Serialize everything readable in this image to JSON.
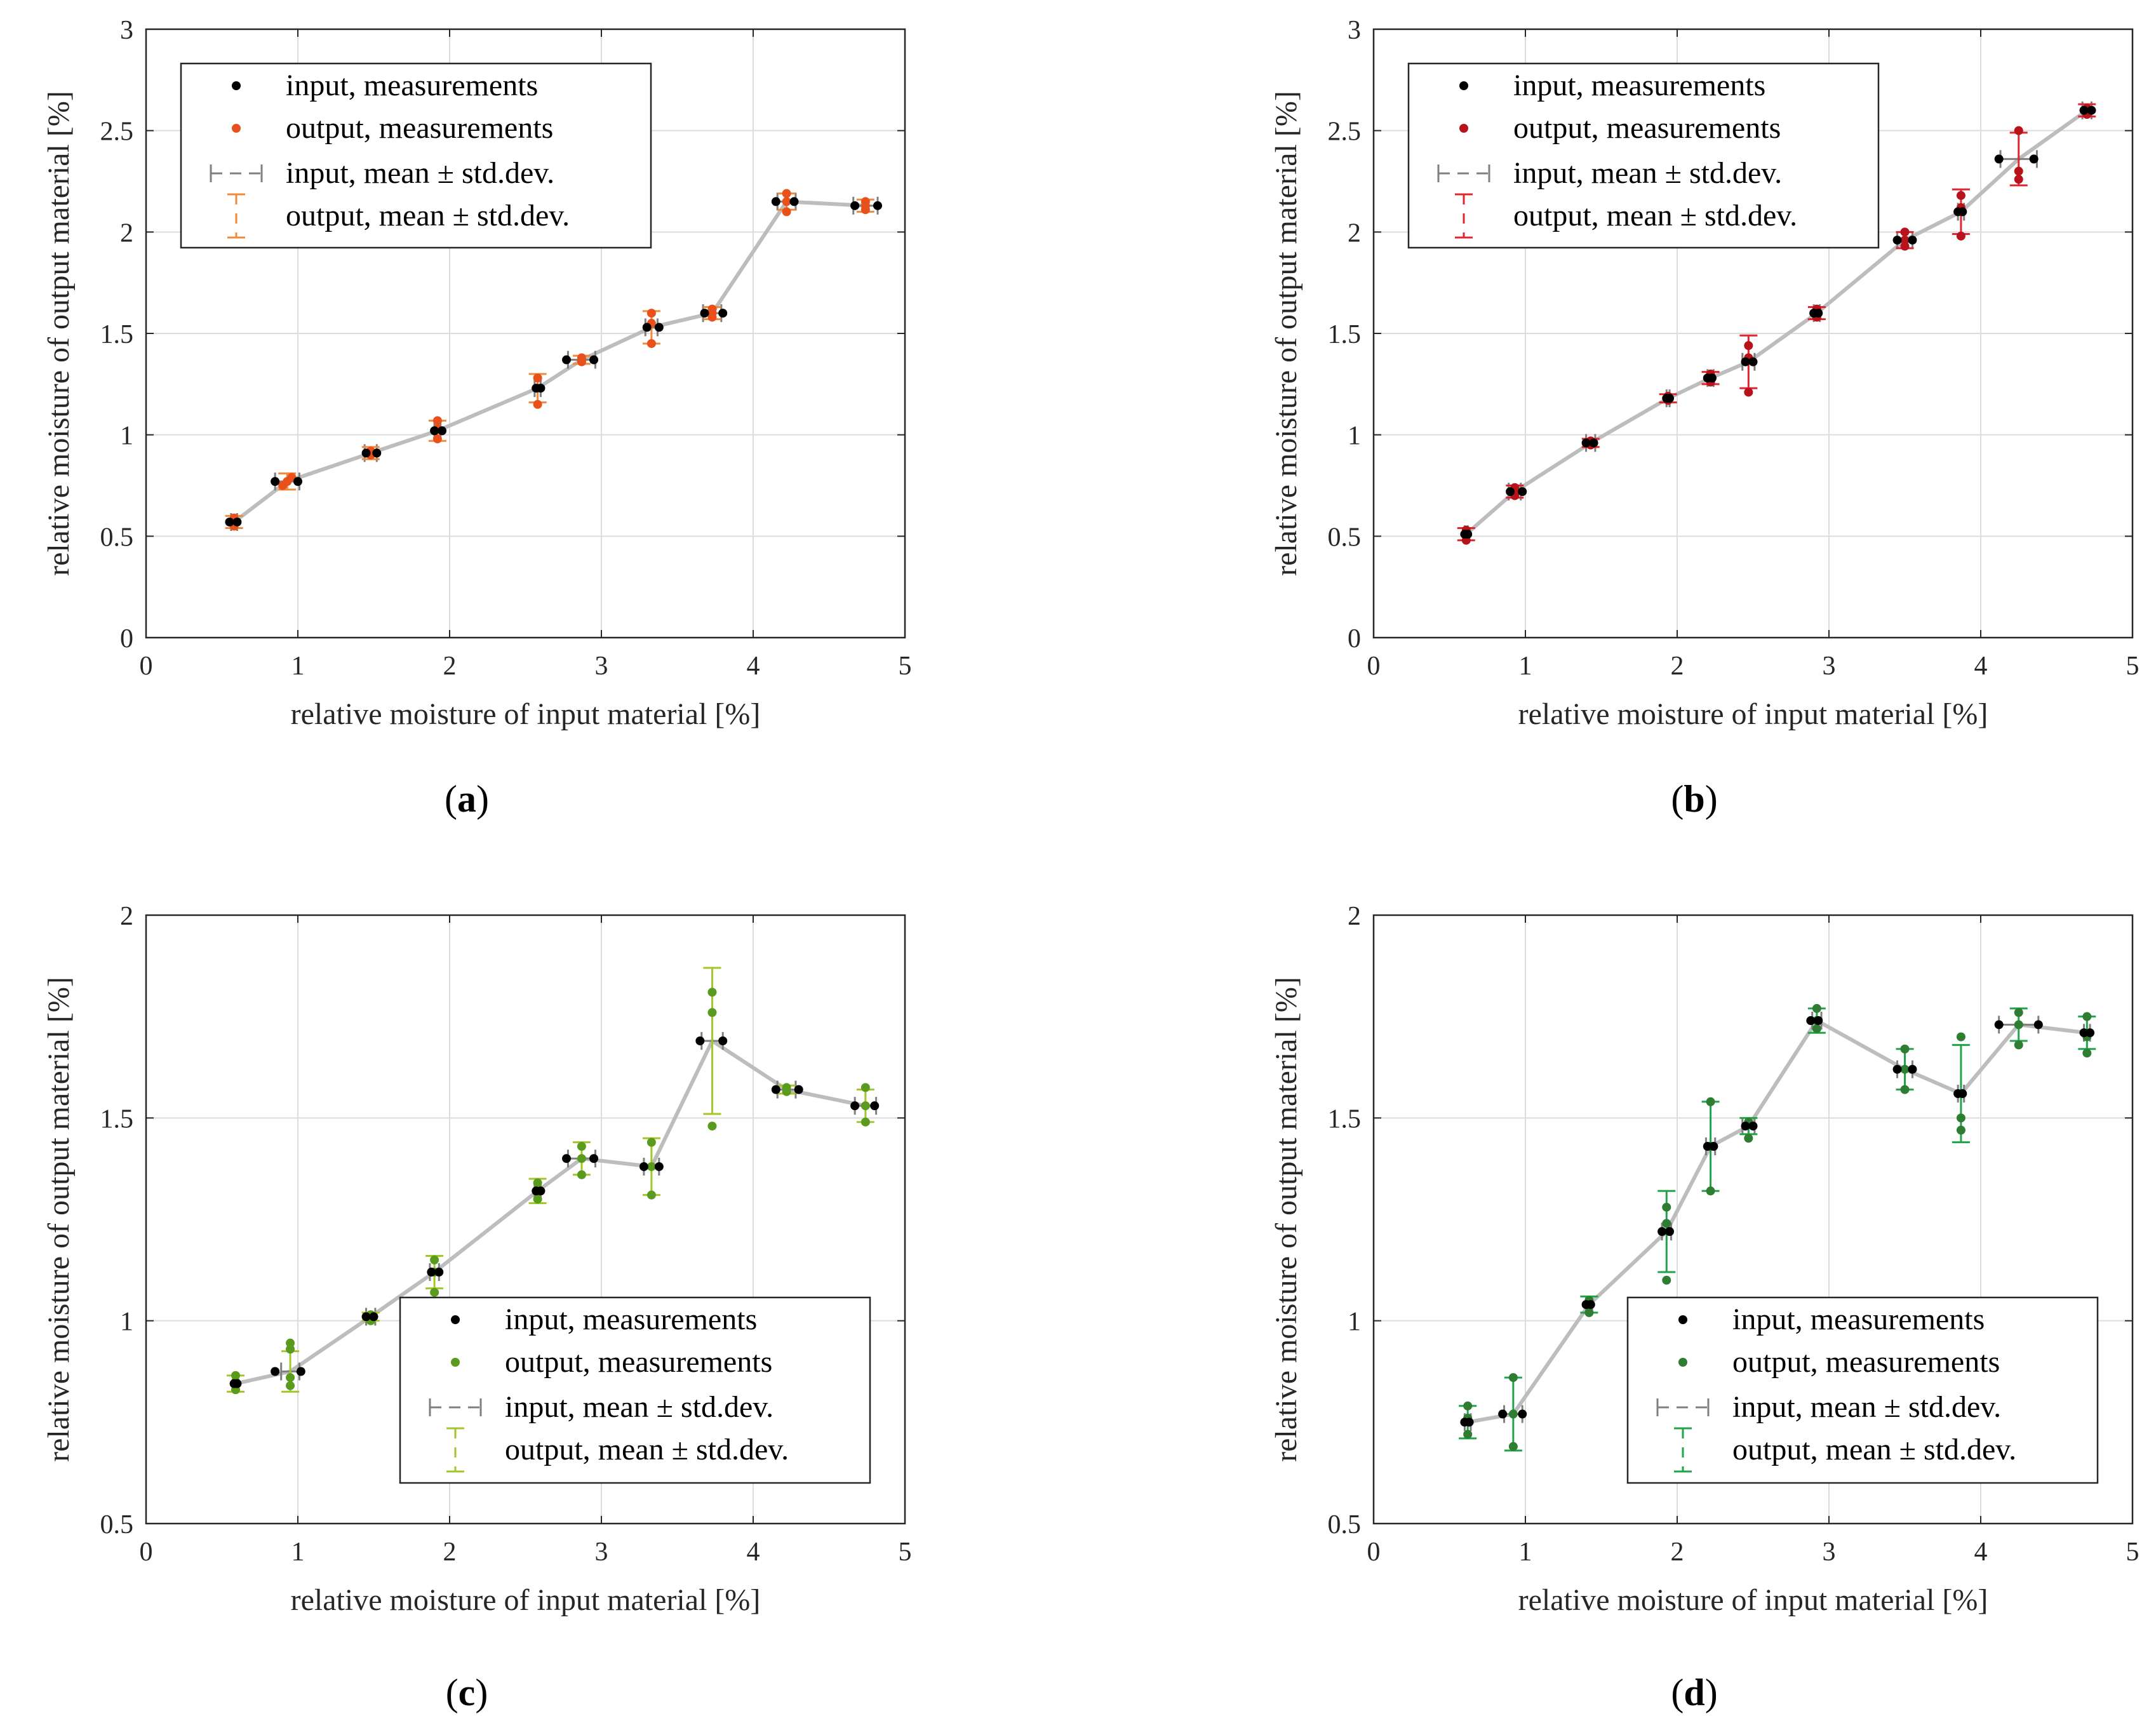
{
  "colors": {
    "axis": "#262626",
    "grid": "#dcdcdc",
    "line": "#bdbdbd",
    "input_errorbar": "#808080",
    "input_points": "#000000"
  },
  "legend_text": {
    "input_measurements": "input, measurements",
    "output_measurements": "output, measurements",
    "input_mean": "input, mean ± std.dev.",
    "output_mean": "output, mean ± std.dev."
  },
  "chart_data": [
    {
      "panel": "a",
      "panel_label": "(a)",
      "type": "scatter",
      "xlabel": "relative moisture of input material [%]",
      "ylabel": "relative moisture of output material [%]",
      "xlim": [
        0,
        5
      ],
      "ylim": [
        0,
        3
      ],
      "xticks": [
        "0",
        "1",
        "2",
        "3",
        "4",
        "5"
      ],
      "yticks": [
        "0",
        "0.5",
        "1",
        "1.5",
        "2",
        "2.5",
        "3"
      ],
      "grid": true,
      "legend_position": "top-left",
      "output_color": "#e8501c",
      "output_errorbar_color": "#f08a3c",
      "series": [
        {
          "name": "input, measurements",
          "x": [
            0.55,
            0.6,
            0.85,
            1.0,
            1.45,
            1.52,
            1.9,
            1.95,
            2.57,
            2.6,
            2.77,
            2.95,
            3.3,
            3.38,
            3.68,
            3.8,
            4.15,
            4.27,
            4.67,
            4.82
          ],
          "y": [
            0.57,
            0.57,
            0.77,
            0.77,
            0.91,
            0.91,
            1.02,
            1.02,
            1.23,
            1.23,
            1.37,
            1.37,
            1.53,
            1.53,
            1.6,
            1.6,
            2.15,
            2.15,
            2.13,
            2.13
          ]
        },
        {
          "name": "output, measurements",
          "x": [
            0.58,
            0.58,
            0.58,
            0.9,
            0.93,
            0.96,
            1.48,
            1.48,
            1.92,
            1.92,
            1.92,
            2.58,
            2.58,
            2.58,
            2.87,
            2.87,
            2.87,
            3.33,
            3.33,
            3.33,
            3.73,
            3.73,
            3.73,
            4.22,
            4.22,
            4.22,
            4.74,
            4.74,
            4.74
          ],
          "y": [
            0.55,
            0.57,
            0.59,
            0.75,
            0.77,
            0.79,
            0.9,
            0.92,
            0.98,
            1.03,
            1.07,
            1.15,
            1.23,
            1.28,
            1.36,
            1.37,
            1.38,
            1.45,
            1.55,
            1.6,
            1.58,
            1.6,
            1.62,
            2.1,
            2.15,
            2.19,
            2.11,
            2.13,
            2.15
          ]
        },
        {
          "name": "mean",
          "x": [
            0.58,
            0.93,
            1.48,
            1.92,
            2.58,
            2.87,
            3.33,
            3.73,
            4.22,
            4.74
          ],
          "y": [
            0.57,
            0.77,
            0.91,
            1.02,
            1.23,
            1.37,
            1.53,
            1.6,
            2.15,
            2.13
          ],
          "xerr": [
            0.02,
            0.08,
            0.04,
            0.02,
            0.02,
            0.09,
            0.04,
            0.06,
            0.06,
            0.08
          ],
          "yerr": [
            0.03,
            0.04,
            0.03,
            0.05,
            0.07,
            0.02,
            0.08,
            0.03,
            0.04,
            0.03
          ]
        }
      ]
    },
    {
      "panel": "b",
      "panel_label": "(b)",
      "type": "scatter",
      "xlabel": "relative moisture of input material [%]",
      "ylabel": "relative moisture of output material [%]",
      "xlim": [
        0,
        5
      ],
      "ylim": [
        0,
        3
      ],
      "xticks": [
        "0",
        "1",
        "2",
        "3",
        "4",
        "5"
      ],
      "yticks": [
        "0",
        "0.5",
        "1",
        "1.5",
        "2",
        "2.5",
        "3"
      ],
      "grid": true,
      "legend_position": "top-left",
      "output_color": "#b8121b",
      "output_errorbar_color": "#e0262e",
      "series": [
        {
          "name": "input, measurements",
          "x": [
            0.6,
            0.62,
            0.9,
            0.98,
            1.4,
            1.45,
            1.93,
            1.95,
            2.2,
            2.23,
            2.45,
            2.5,
            2.9,
            2.93,
            3.45,
            3.55,
            3.85,
            3.88,
            4.12,
            4.35,
            4.68,
            4.73
          ],
          "y": [
            0.51,
            0.51,
            0.72,
            0.72,
            0.96,
            0.96,
            1.18,
            1.18,
            1.28,
            1.28,
            1.36,
            1.36,
            1.6,
            1.6,
            1.96,
            1.96,
            2.1,
            2.1,
            2.36,
            2.36,
            2.6,
            2.6
          ]
        },
        {
          "name": "output, measurements",
          "x": [
            0.61,
            0.61,
            0.61,
            0.93,
            0.93,
            0.93,
            1.43,
            1.43,
            1.94,
            1.94,
            2.22,
            2.22,
            2.22,
            2.47,
            2.47,
            2.47,
            2.92,
            2.92,
            2.92,
            3.5,
            3.5,
            3.5,
            3.87,
            3.87,
            3.87,
            4.25,
            4.25,
            4.25,
            4.7,
            4.7
          ],
          "y": [
            0.48,
            0.51,
            0.53,
            0.7,
            0.72,
            0.74,
            0.95,
            0.97,
            1.17,
            1.19,
            1.26,
            1.28,
            1.3,
            1.21,
            1.38,
            1.44,
            1.58,
            1.6,
            1.62,
            1.93,
            1.96,
            2.0,
            1.98,
            2.12,
            2.18,
            2.26,
            2.3,
            2.5,
            2.58,
            2.61
          ]
        },
        {
          "name": "mean",
          "x": [
            0.61,
            0.93,
            1.43,
            1.94,
            2.22,
            2.47,
            2.92,
            3.5,
            3.87,
            4.25,
            4.7
          ],
          "y": [
            0.51,
            0.72,
            0.96,
            1.18,
            1.28,
            1.36,
            1.6,
            1.96,
            2.1,
            2.36,
            2.6
          ],
          "xerr": [
            0.01,
            0.04,
            0.03,
            0.01,
            0.02,
            0.04,
            0.02,
            0.05,
            0.02,
            0.12,
            0.03
          ],
          "yerr": [
            0.03,
            0.03,
            0.02,
            0.02,
            0.03,
            0.13,
            0.03,
            0.04,
            0.11,
            0.13,
            0.03
          ]
        }
      ]
    },
    {
      "panel": "c",
      "panel_label": "(c)",
      "type": "scatter",
      "xlabel": "relative moisture of input material [%]",
      "ylabel": "relative moisture of output material [%]",
      "xlim": [
        0,
        5
      ],
      "ylim": [
        0.5,
        2
      ],
      "xticks": [
        "0",
        "1",
        "2",
        "3",
        "4",
        "5"
      ],
      "yticks": [
        "0.5",
        "1",
        "1.5",
        "2"
      ],
      "grid": true,
      "legend_position": "bottom-right",
      "output_color": "#5a9b1e",
      "output_errorbar_color": "#a3c62a",
      "series": [
        {
          "name": "input, measurements",
          "x": [
            0.58,
            0.6,
            0.85,
            1.02,
            1.45,
            1.5,
            1.88,
            1.93,
            2.57,
            2.6,
            2.77,
            2.95,
            3.28,
            3.38,
            3.65,
            3.8,
            4.15,
            4.3,
            4.67,
            4.8
          ],
          "y": [
            0.845,
            0.845,
            0.875,
            0.875,
            1.01,
            1.01,
            1.12,
            1.12,
            1.32,
            1.32,
            1.4,
            1.4,
            1.38,
            1.38,
            1.69,
            1.69,
            1.57,
            1.57,
            1.53,
            1.53
          ]
        },
        {
          "name": "output, measurements",
          "x": [
            0.59,
            0.59,
            0.59,
            0.95,
            0.95,
            0.95,
            0.95,
            1.48,
            1.48,
            1.9,
            1.9,
            1.9,
            2.58,
            2.58,
            2.58,
            2.87,
            2.87,
            2.87,
            3.33,
            3.33,
            3.33,
            3.73,
            3.73,
            3.73,
            4.22,
            4.22,
            4.74,
            4.74,
            4.74
          ],
          "y": [
            0.83,
            0.85,
            0.865,
            0.84,
            0.86,
            0.93,
            0.945,
            1.0,
            1.015,
            1.07,
            1.12,
            1.15,
            1.3,
            1.32,
            1.34,
            1.36,
            1.4,
            1.43,
            1.31,
            1.38,
            1.44,
            1.48,
            1.76,
            1.81,
            1.565,
            1.575,
            1.49,
            1.53,
            1.575
          ]
        },
        {
          "name": "mean",
          "x": [
            0.59,
            0.95,
            1.48,
            1.9,
            2.58,
            2.87,
            3.33,
            3.73,
            4.22,
            4.74
          ],
          "y": [
            0.845,
            0.875,
            1.01,
            1.12,
            1.32,
            1.4,
            1.38,
            1.69,
            1.57,
            1.53
          ],
          "xerr": [
            0.01,
            0.06,
            0.03,
            0.03,
            0.02,
            0.09,
            0.05,
            0.07,
            0.06,
            0.07
          ],
          "yerr": [
            0.02,
            0.05,
            0.01,
            0.04,
            0.03,
            0.04,
            0.07,
            0.18,
            0.01,
            0.04
          ]
        }
      ]
    },
    {
      "panel": "d",
      "panel_label": "(d)",
      "type": "scatter",
      "xlabel": "relative moisture of input material [%]",
      "ylabel": "relative moisture of output material [%]",
      "xlim": [
        0,
        5
      ],
      "ylim": [
        0.5,
        2
      ],
      "xticks": [
        "0",
        "1",
        "2",
        "3",
        "4",
        "5"
      ],
      "yticks": [
        "0.5",
        "1",
        "1.5",
        "2"
      ],
      "grid": true,
      "legend_position": "bottom-right",
      "output_color": "#2e7d32",
      "output_errorbar_color": "#21a34a",
      "series": [
        {
          "name": "input, measurements",
          "x": [
            0.6,
            0.63,
            0.85,
            0.98,
            1.4,
            1.43,
            1.9,
            1.95,
            2.2,
            2.24,
            2.45,
            2.5,
            2.88,
            2.93,
            3.45,
            3.55,
            3.85,
            3.88,
            4.12,
            4.38,
            4.68,
            4.72
          ],
          "y": [
            0.75,
            0.75,
            0.77,
            0.77,
            1.04,
            1.04,
            1.22,
            1.22,
            1.43,
            1.43,
            1.48,
            1.48,
            1.74,
            1.74,
            1.62,
            1.62,
            1.56,
            1.56,
            1.73,
            1.73,
            1.71,
            1.71
          ]
        },
        {
          "name": "output, measurements",
          "x": [
            0.62,
            0.62,
            0.62,
            0.92,
            0.92,
            0.92,
            1.42,
            1.42,
            1.93,
            1.93,
            1.93,
            2.22,
            2.22,
            2.22,
            2.47,
            2.47,
            2.92,
            2.92,
            2.92,
            3.5,
            3.5,
            3.5,
            3.87,
            3.87,
            3.87,
            4.25,
            4.25,
            4.25,
            4.7,
            4.7,
            4.7
          ],
          "y": [
            0.72,
            0.76,
            0.79,
            0.69,
            0.77,
            0.86,
            1.02,
            1.05,
            1.1,
            1.24,
            1.28,
            1.32,
            1.43,
            1.54,
            1.45,
            1.49,
            1.72,
            1.74,
            1.77,
            1.57,
            1.62,
            1.67,
            1.47,
            1.5,
            1.7,
            1.68,
            1.73,
            1.76,
            1.66,
            1.7,
            1.75
          ]
        },
        {
          "name": "mean",
          "x": [
            0.62,
            0.92,
            1.42,
            1.93,
            2.22,
            2.47,
            2.92,
            3.5,
            3.87,
            4.25,
            4.7
          ],
          "y": [
            0.75,
            0.77,
            1.04,
            1.22,
            1.43,
            1.48,
            1.74,
            1.62,
            1.56,
            1.73,
            1.71
          ],
          "xerr": [
            0.02,
            0.06,
            0.02,
            0.03,
            0.03,
            0.04,
            0.03,
            0.05,
            0.02,
            0.13,
            0.02
          ],
          "yerr": [
            0.04,
            0.09,
            0.02,
            0.1,
            0.11,
            0.02,
            0.03,
            0.05,
            0.12,
            0.04,
            0.04
          ]
        }
      ]
    }
  ]
}
